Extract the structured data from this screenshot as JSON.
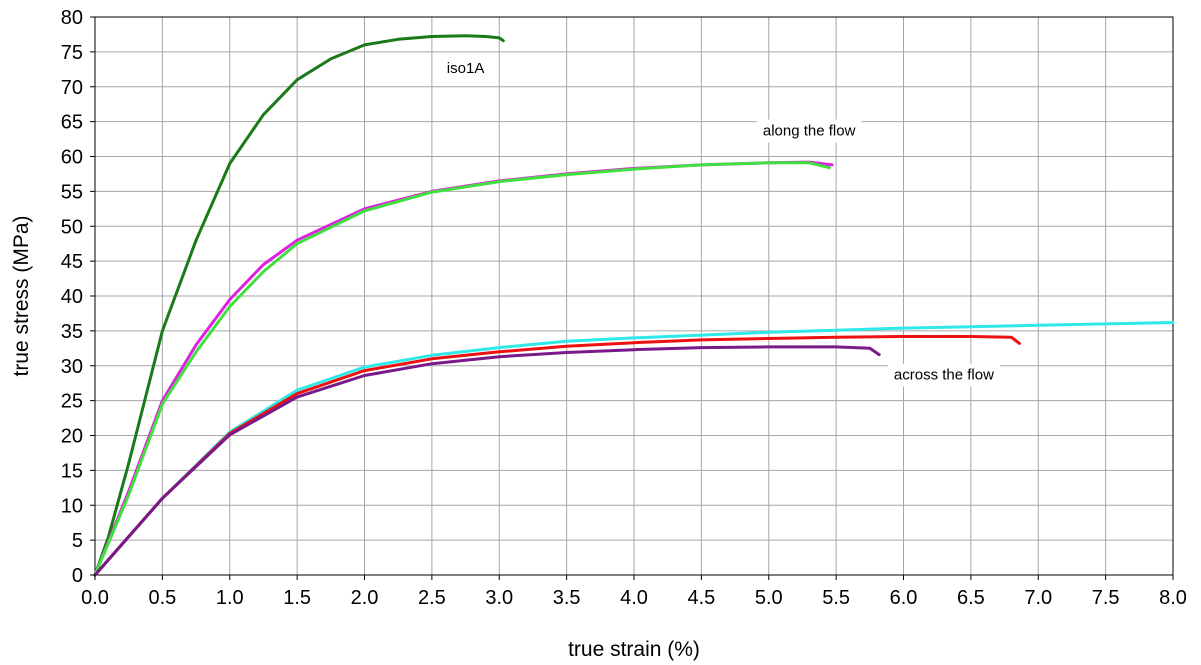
{
  "chart_data": {
    "type": "line",
    "title": "",
    "xlabel": "true strain (%)",
    "ylabel": "true stress (MPa)",
    "xlim": [
      0,
      8
    ],
    "ylim": [
      0,
      80
    ],
    "grid": true,
    "x_ticks": [
      "0.0",
      "0.5",
      "1.0",
      "1.5",
      "2.0",
      "2.5",
      "3.0",
      "3.5",
      "4.0",
      "4.5",
      "5.0",
      "5.5",
      "6.0",
      "6.5",
      "7.0",
      "7.5",
      "8.0"
    ],
    "y_ticks": [
      "0",
      "5",
      "10",
      "15",
      "20",
      "25",
      "30",
      "35",
      "40",
      "45",
      "50",
      "55",
      "60",
      "65",
      "70",
      "75",
      "80"
    ],
    "annotations": [
      {
        "text": "iso1A",
        "x": 2.75,
        "y": 72
      },
      {
        "text": "along the flow",
        "x": 5.3,
        "y": 63
      },
      {
        "text": "across the flow",
        "x": 6.3,
        "y": 28
      }
    ],
    "series": [
      {
        "color": "#1a7a1a",
        "points": [
          [
            0,
            0
          ],
          [
            0.1,
            5.5
          ],
          [
            0.25,
            16
          ],
          [
            0.5,
            35
          ],
          [
            0.75,
            48
          ],
          [
            1.0,
            59
          ],
          [
            1.25,
            66
          ],
          [
            1.5,
            71
          ],
          [
            1.75,
            74
          ],
          [
            2.0,
            76
          ],
          [
            2.25,
            76.8
          ],
          [
            2.5,
            77.2
          ],
          [
            2.75,
            77.3
          ],
          [
            2.9,
            77.2
          ],
          [
            3.0,
            77.0
          ],
          [
            3.03,
            76.6
          ]
        ]
      },
      {
        "color": "#e020e0",
        "points": [
          [
            0,
            0
          ],
          [
            0.25,
            12
          ],
          [
            0.5,
            25
          ],
          [
            0.75,
            33
          ],
          [
            1.0,
            39.5
          ],
          [
            1.25,
            44.5
          ],
          [
            1.5,
            48
          ],
          [
            2.0,
            52.5
          ],
          [
            2.5,
            55
          ],
          [
            3.0,
            56.5
          ],
          [
            3.5,
            57.5
          ],
          [
            4.0,
            58.3
          ],
          [
            4.5,
            58.8
          ],
          [
            5.0,
            59.1
          ],
          [
            5.3,
            59.2
          ],
          [
            5.47,
            58.8
          ]
        ]
      },
      {
        "color": "#40e040",
        "points": [
          [
            0,
            0
          ],
          [
            0.25,
            11.5
          ],
          [
            0.5,
            24.5
          ],
          [
            0.75,
            32
          ],
          [
            1.0,
            38.5
          ],
          [
            1.25,
            43.5
          ],
          [
            1.5,
            47.5
          ],
          [
            2.0,
            52.2
          ],
          [
            2.5,
            54.9
          ],
          [
            3.0,
            56.4
          ],
          [
            3.5,
            57.4
          ],
          [
            4.0,
            58.2
          ],
          [
            4.5,
            58.8
          ],
          [
            5.0,
            59.1
          ],
          [
            5.3,
            59.1
          ],
          [
            5.45,
            58.4
          ]
        ]
      },
      {
        "color": "#30e8e8",
        "points": [
          [
            0,
            0
          ],
          [
            0.5,
            11
          ],
          [
            1.0,
            20.5
          ],
          [
            1.5,
            26.5
          ],
          [
            2.0,
            29.8
          ],
          [
            2.5,
            31.5
          ],
          [
            3.0,
            32.6
          ],
          [
            3.5,
            33.5
          ],
          [
            4.0,
            34.0
          ],
          [
            4.5,
            34.4
          ],
          [
            5.0,
            34.8
          ],
          [
            5.5,
            35.1
          ],
          [
            6.0,
            35.4
          ],
          [
            6.5,
            35.6
          ],
          [
            7.0,
            35.8
          ],
          [
            7.5,
            36.0
          ],
          [
            8.0,
            36.2
          ]
        ]
      },
      {
        "color": "#ee1111",
        "points": [
          [
            0,
            0
          ],
          [
            0.5,
            11
          ],
          [
            1.0,
            20.3
          ],
          [
            1.5,
            26.0
          ],
          [
            2.0,
            29.3
          ],
          [
            2.5,
            31.0
          ],
          [
            3.0,
            32.0
          ],
          [
            3.5,
            32.8
          ],
          [
            4.0,
            33.3
          ],
          [
            4.5,
            33.7
          ],
          [
            5.0,
            33.9
          ],
          [
            5.5,
            34.1
          ],
          [
            6.0,
            34.2
          ],
          [
            6.5,
            34.2
          ],
          [
            6.8,
            34.1
          ],
          [
            6.86,
            33.2
          ]
        ]
      },
      {
        "color": "#7a1a8a",
        "points": [
          [
            0,
            0
          ],
          [
            0.5,
            11
          ],
          [
            1.0,
            20.1
          ],
          [
            1.5,
            25.5
          ],
          [
            2.0,
            28.6
          ],
          [
            2.5,
            30.3
          ],
          [
            3.0,
            31.3
          ],
          [
            3.5,
            31.9
          ],
          [
            4.0,
            32.3
          ],
          [
            4.5,
            32.6
          ],
          [
            5.0,
            32.7
          ],
          [
            5.5,
            32.7
          ],
          [
            5.75,
            32.5
          ],
          [
            5.82,
            31.6
          ]
        ]
      }
    ]
  }
}
